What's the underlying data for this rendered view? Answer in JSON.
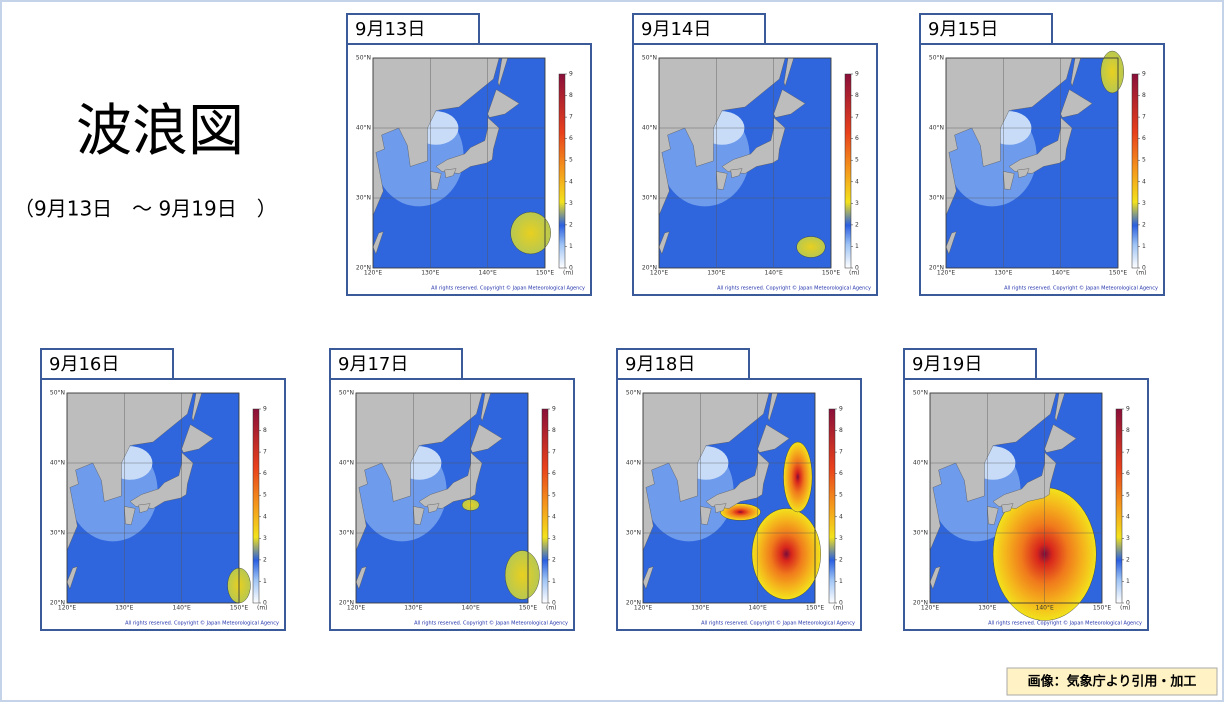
{
  "header": {
    "title": "波浪図",
    "subtitle": "（9月13日　～ 9月19日　）"
  },
  "map": {
    "lat_ticks": [
      {
        "value": 50,
        "label": "50°N"
      },
      {
        "value": 40,
        "label": "40°N"
      },
      {
        "value": 30,
        "label": "30°N"
      },
      {
        "value": 20,
        "label": "20°N"
      }
    ],
    "lon_ticks": [
      {
        "value": 120,
        "label": "120°E"
      },
      {
        "value": 130,
        "label": "130°E"
      },
      {
        "value": 140,
        "label": "140°E"
      },
      {
        "value": 150,
        "label": "150°E"
      }
    ],
    "colorbar_ticks": [
      0,
      1,
      2,
      3,
      4,
      5,
      6,
      7,
      8,
      9
    ],
    "colorbar_unit": "(m)",
    "copyright": "All rights reserved. Copyright © Japan Meteorological Agency"
  },
  "panels": [
    {
      "label": "9月13日"
    },
    {
      "label": "9月14日"
    },
    {
      "label": "9月15日"
    },
    {
      "label": "9月16日"
    },
    {
      "label": "9月17日"
    },
    {
      "label": "9月18日"
    },
    {
      "label": "9月19日"
    }
  ],
  "footer": {
    "credit": "画像：気象庁より引用・加工"
  }
}
